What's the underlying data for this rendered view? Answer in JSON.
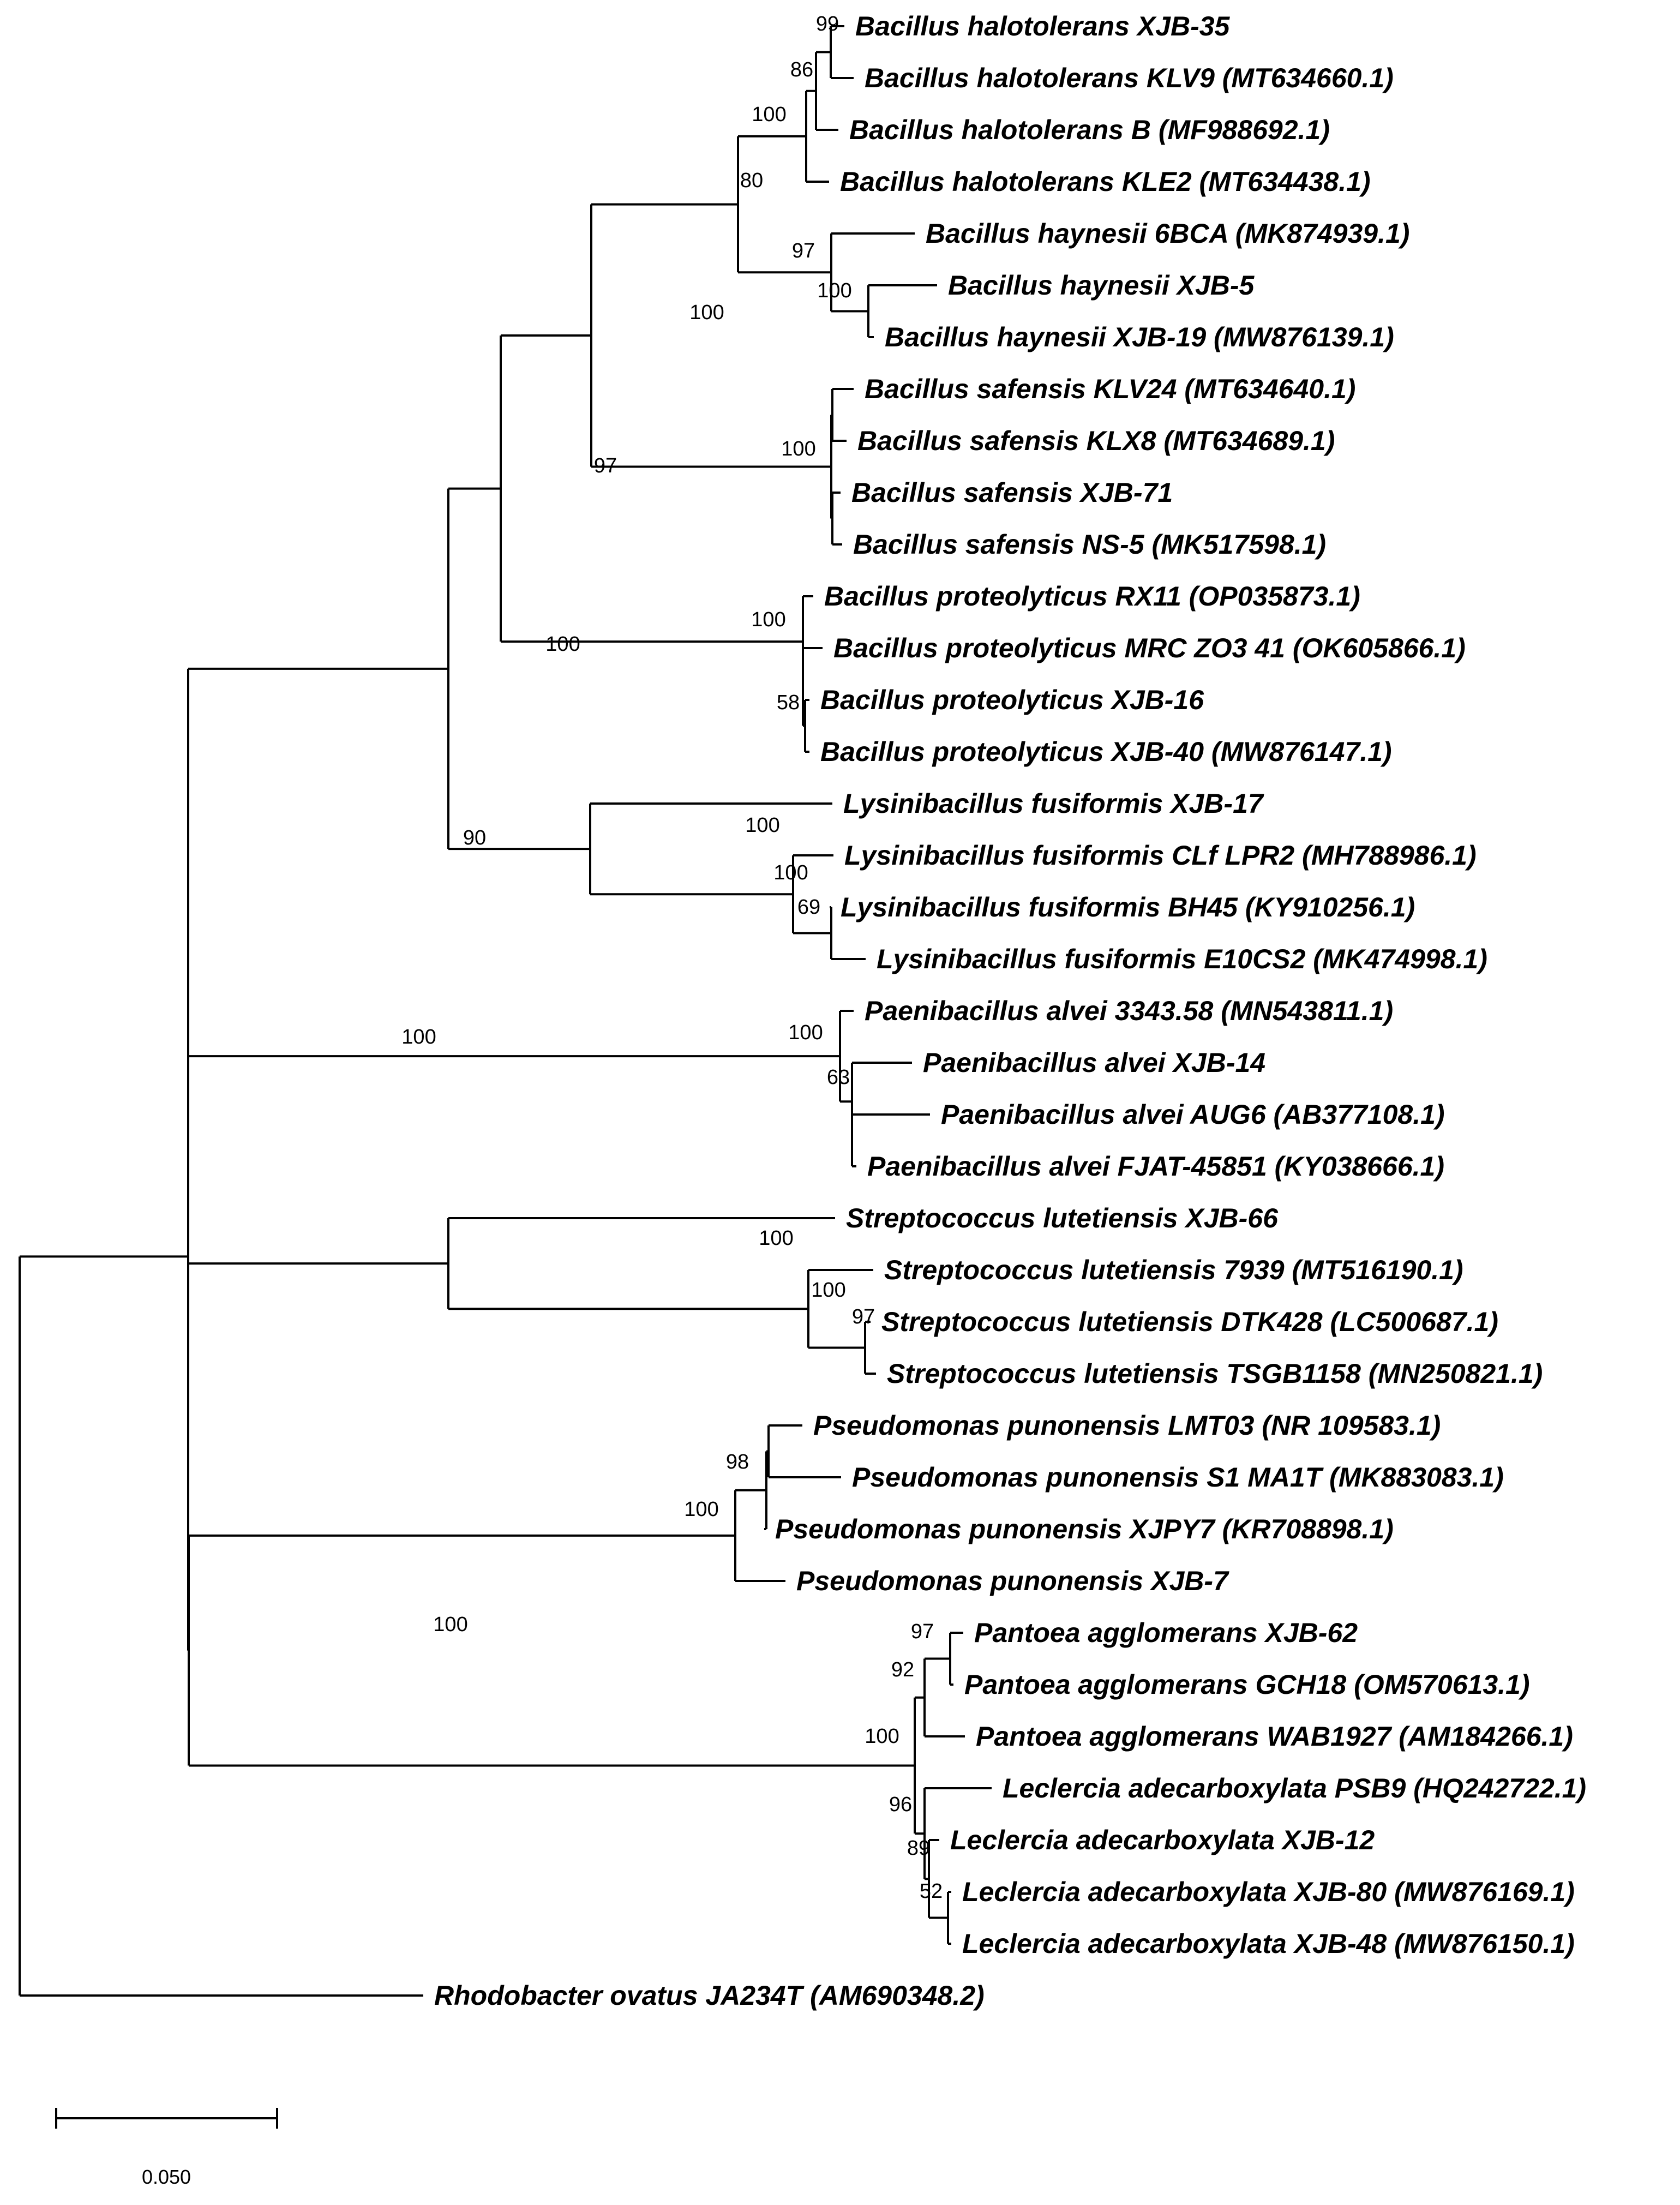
{
  "figure_type": "phylogenetic tree",
  "leaves": [
    "Bacillus halotolerans XJB-35",
    "Bacillus halotolerans KLV9 (MT634660.1)",
    "Bacillus halotolerans B (MF988692.1)",
    "Bacillus halotolerans KLE2 (MT634438.1)",
    "Bacillus haynesii 6BCA (MK874939.1)",
    "Bacillus haynesii XJB-5",
    "Bacillus haynesii XJB-19 (MW876139.1)",
    "Bacillus safensis KLV24 (MT634640.1)",
    "Bacillus safensis KLX8 (MT634689.1)",
    "Bacillus safensis XJB-71",
    "Bacillus safensis NS-5 (MK517598.1)",
    "Bacillus proteolyticus RX11 (OP035873.1)",
    "Bacillus proteolyticus MRC ZO3 41 (OK605866.1)",
    "Bacillus proteolyticus XJB-16",
    "Bacillus proteolyticus XJB-40 (MW876147.1)",
    "Lysinibacillus fusiformis XJB-17",
    "Lysinibacillus fusiformis CLf LPR2 (MH788986.1)",
    "Lysinibacillus fusiformis BH45 (KY910256.1)",
    "Lysinibacillus fusiformis E10CS2 (MK474998.1)",
    "Paenibacillus alvei 3343.58 (MN543811.1)",
    "Paenibacillus alvei XJB-14",
    "Paenibacillus alvei AUG6 (AB377108.1)",
    "Paenibacillus alvei FJAT-45851 (KY038666.1)",
    "Streptococcus lutetiensis XJB-66",
    "Streptococcus lutetiensis 7939 (MT516190.1)",
    "Streptococcus lutetiensis DTK428 (LC500687.1)",
    "Streptococcus lutetiensis TSGB1158 (MN250821.1)",
    "Pseudomonas punonensis LMT03 (NR 109583.1)",
    "Pseudomonas punonensis S1 MA1T (MK883083.1)",
    "Pseudomonas punonensis XJPY7 (KR708898.1)",
    "Pseudomonas punonensis XJB-7",
    "Pantoea agglomerans XJB-62",
    "Pantoea agglomerans GCH18 (OM570613.1)",
    "Pantoea agglomerans WAB1927 (AM184266.1)",
    "Leclercia adecarboxylata PSB9 (HQ242722.1)",
    "Leclercia adecarboxylata XJB-12",
    "Leclercia adecarboxylata XJB-80 (MW876169.1)",
    "Leclercia adecarboxylata XJB-48 (MW876150.1)",
    "Rhodobacter ovatus JA234T (AM690348.2)"
  ],
  "bootstrap_values": [
    "99",
    "86",
    "100",
    "80",
    "97",
    "100",
    "100",
    "97",
    "100",
    "58",
    "100",
    "100",
    "69",
    "90",
    "100",
    "63",
    "100",
    "100",
    "97",
    "98",
    "100",
    "100",
    "97",
    "92",
    "100",
    "96",
    "89",
    "52",
    "100"
  ],
  "scale_bar": {
    "label": "0.050",
    "value": 0.05
  }
}
